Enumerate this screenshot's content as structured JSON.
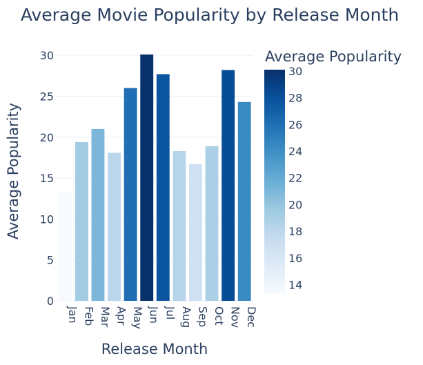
{
  "chart_data": {
    "type": "bar",
    "title": "Average Movie Popularity by Release Month",
    "xlabel": "Release Month",
    "ylabel": "Average Popularity",
    "categories": [
      "Jan",
      "Feb",
      "Mar",
      "Apr",
      "May",
      "Jun",
      "Jul",
      "Aug",
      "Sep",
      "Oct",
      "Nov",
      "Dec"
    ],
    "values": [
      13.3,
      19.4,
      21.0,
      18.1,
      26.0,
      30.1,
      27.7,
      18.3,
      16.7,
      18.9,
      28.2,
      24.3
    ],
    "ylim": [
      0,
      30.1
    ],
    "yticks": [
      "0",
      "5",
      "10",
      "15",
      "20",
      "25",
      "30"
    ],
    "grid": true,
    "colorscale": "Blues",
    "colorbar": {
      "title": "Average Popularity",
      "range": [
        13.3,
        30.1
      ],
      "ticks": [
        "14",
        "16",
        "18",
        "20",
        "22",
        "24",
        "26",
        "28",
        "30"
      ],
      "colors": [
        "#f7fbff",
        "#deebf7",
        "#c6dbef",
        "#9ecae1",
        "#6baed6",
        "#4292c6",
        "#2171b5",
        "#08519c",
        "#08306b"
      ]
    }
  }
}
